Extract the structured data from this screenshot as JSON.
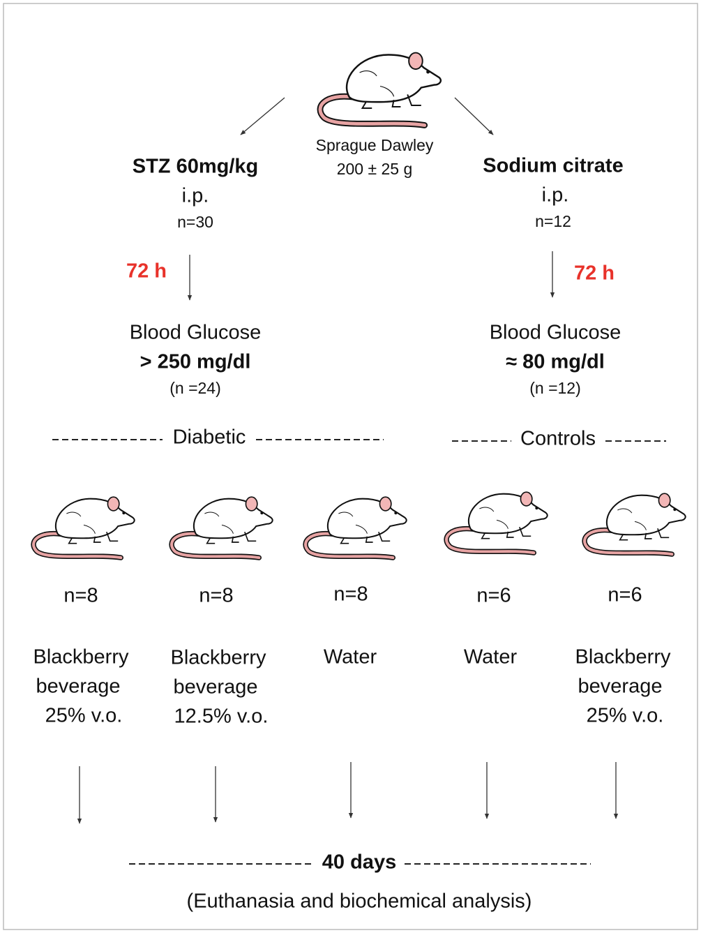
{
  "source": {
    "label": "Sprague Dawley",
    "weight": "200 ± 25 g"
  },
  "branches": [
    {
      "treatment": "STZ 60mg/kg",
      "route": "i.p.",
      "n": "n=30",
      "wait": "72 h",
      "glucose_label": "Blood Glucose",
      "glucose": "> 250 mg/dl",
      "n_selected": "(n =24)",
      "group": "Diabetic"
    },
    {
      "treatment": "Sodium citrate",
      "route": "i.p.",
      "n": "n=12",
      "wait": "72 h",
      "glucose_label": "Blood Glucose",
      "glucose": "≈ 80 mg/dl",
      "n_selected": "(n =12)",
      "group": "Controls"
    }
  ],
  "groups": [
    {
      "n": "n=8",
      "lines": [
        "Blackberry",
        "beverage",
        "25% v.o."
      ]
    },
    {
      "n": "n=8",
      "lines": [
        "Blackberry",
        "beverage",
        "12.5% v.o."
      ]
    },
    {
      "n": "n=8",
      "lines": [
        "Water"
      ]
    },
    {
      "n": "n=6",
      "lines": [
        "Water"
      ]
    },
    {
      "n": "n=6",
      "lines": [
        "Blackberry",
        "beverage",
        "25% v.o."
      ]
    }
  ],
  "footer": {
    "duration": "40 days",
    "note": "(Euthanasia and biochemical analysis)"
  }
}
